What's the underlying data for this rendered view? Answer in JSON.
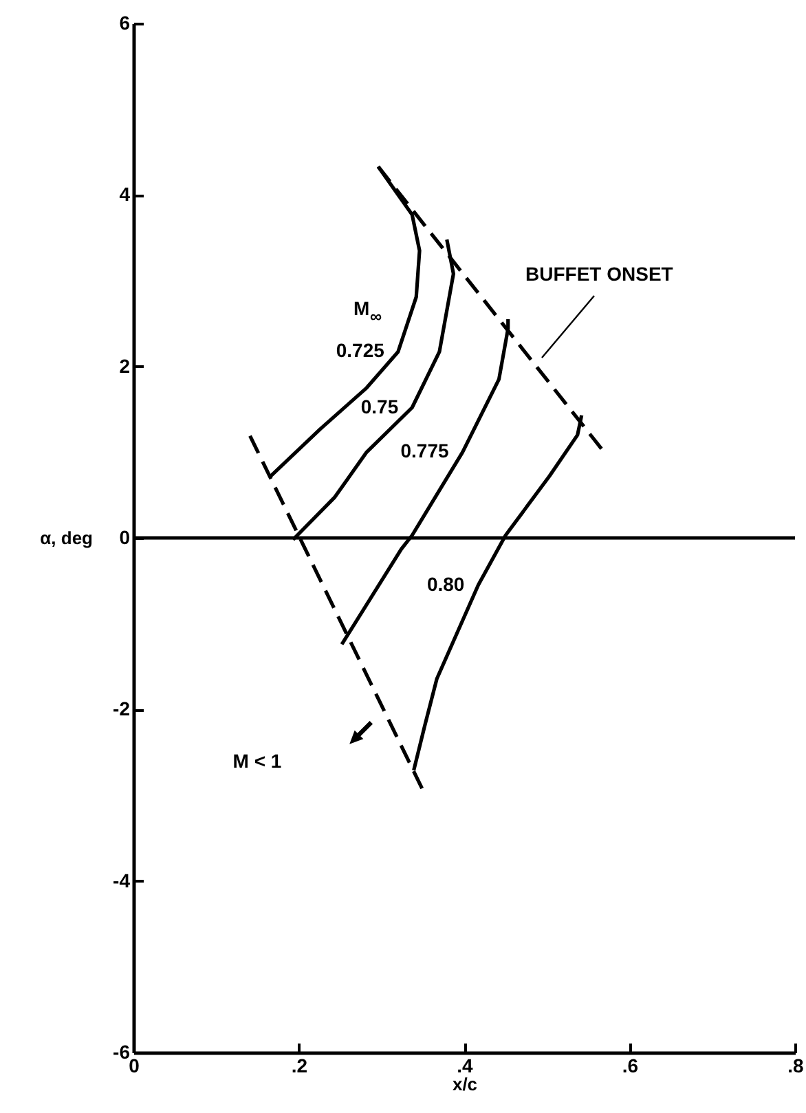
{
  "chart_data": {
    "type": "line",
    "xlabel": "x/c",
    "ylabel": "α, deg",
    "xlim": [
      0,
      0.8
    ],
    "xticks": [
      0,
      {
        "value": 0.2,
        "label": ".2"
      },
      {
        "value": 0.4,
        "label": ".4"
      },
      {
        "value": 0.6,
        "label": ".6"
      },
      {
        "value": 0.8,
        "label": ".8"
      }
    ],
    "ylim": [
      -6,
      6
    ],
    "yticks": [
      -6,
      -4,
      -2,
      0,
      2,
      4,
      6
    ],
    "grid": false,
    "marker": "none",
    "series": [
      {
        "name": "0.725",
        "color": "#000000",
        "line_style": "solid",
        "x": [
          0.166,
          0.226,
          0.282,
          0.32,
          0.342,
          0.346,
          0.337,
          0.296
        ],
        "values": [
          0.72,
          1.27,
          1.75,
          2.17,
          2.81,
          3.35,
          3.77,
          4.33
        ]
      },
      {
        "name": "0.75",
        "color": "#000000",
        "line_style": "solid",
        "x": [
          0.193,
          0.243,
          0.282,
          0.337,
          0.37,
          0.387,
          0.379
        ],
        "values": [
          -0.02,
          0.47,
          1.0,
          1.52,
          2.17,
          3.08,
          3.48
        ]
      },
      {
        "name": "0.775",
        "color": "#000000",
        "line_style": "solid",
        "x": [
          0.252,
          0.324,
          0.337,
          0.398,
          0.442,
          0.453,
          0.453
        ],
        "values": [
          -1.24,
          -0.13,
          0.03,
          1.0,
          1.85,
          2.44,
          2.55
        ]
      },
      {
        "name": "0.80",
        "color": "#000000",
        "line_style": "solid",
        "x": [
          0.339,
          0.352,
          0.367,
          0.417,
          0.45,
          0.503,
          0.537,
          0.542
        ],
        "values": [
          -2.71,
          -2.2,
          -1.64,
          -0.55,
          0.03,
          0.72,
          1.2,
          1.43
        ]
      },
      {
        "color": "#000000",
        "line_style": "dashed",
        "x": [
          0.296,
          0.566
        ],
        "values": [
          4.33,
          1.04
        ]
      },
      {
        "color": "#000000",
        "line_style": "dashed",
        "x": [
          0.141,
          0.349
        ],
        "values": [
          1.19,
          -2.92
        ]
      }
    ],
    "ref_lines": [
      {
        "axis": "y",
        "value": 0,
        "color": "#000000",
        "line_style": "solid"
      }
    ],
    "annotations": [
      "M$_{∞}$",
      "BUFFET ONSET",
      "M < 1"
    ]
  }
}
